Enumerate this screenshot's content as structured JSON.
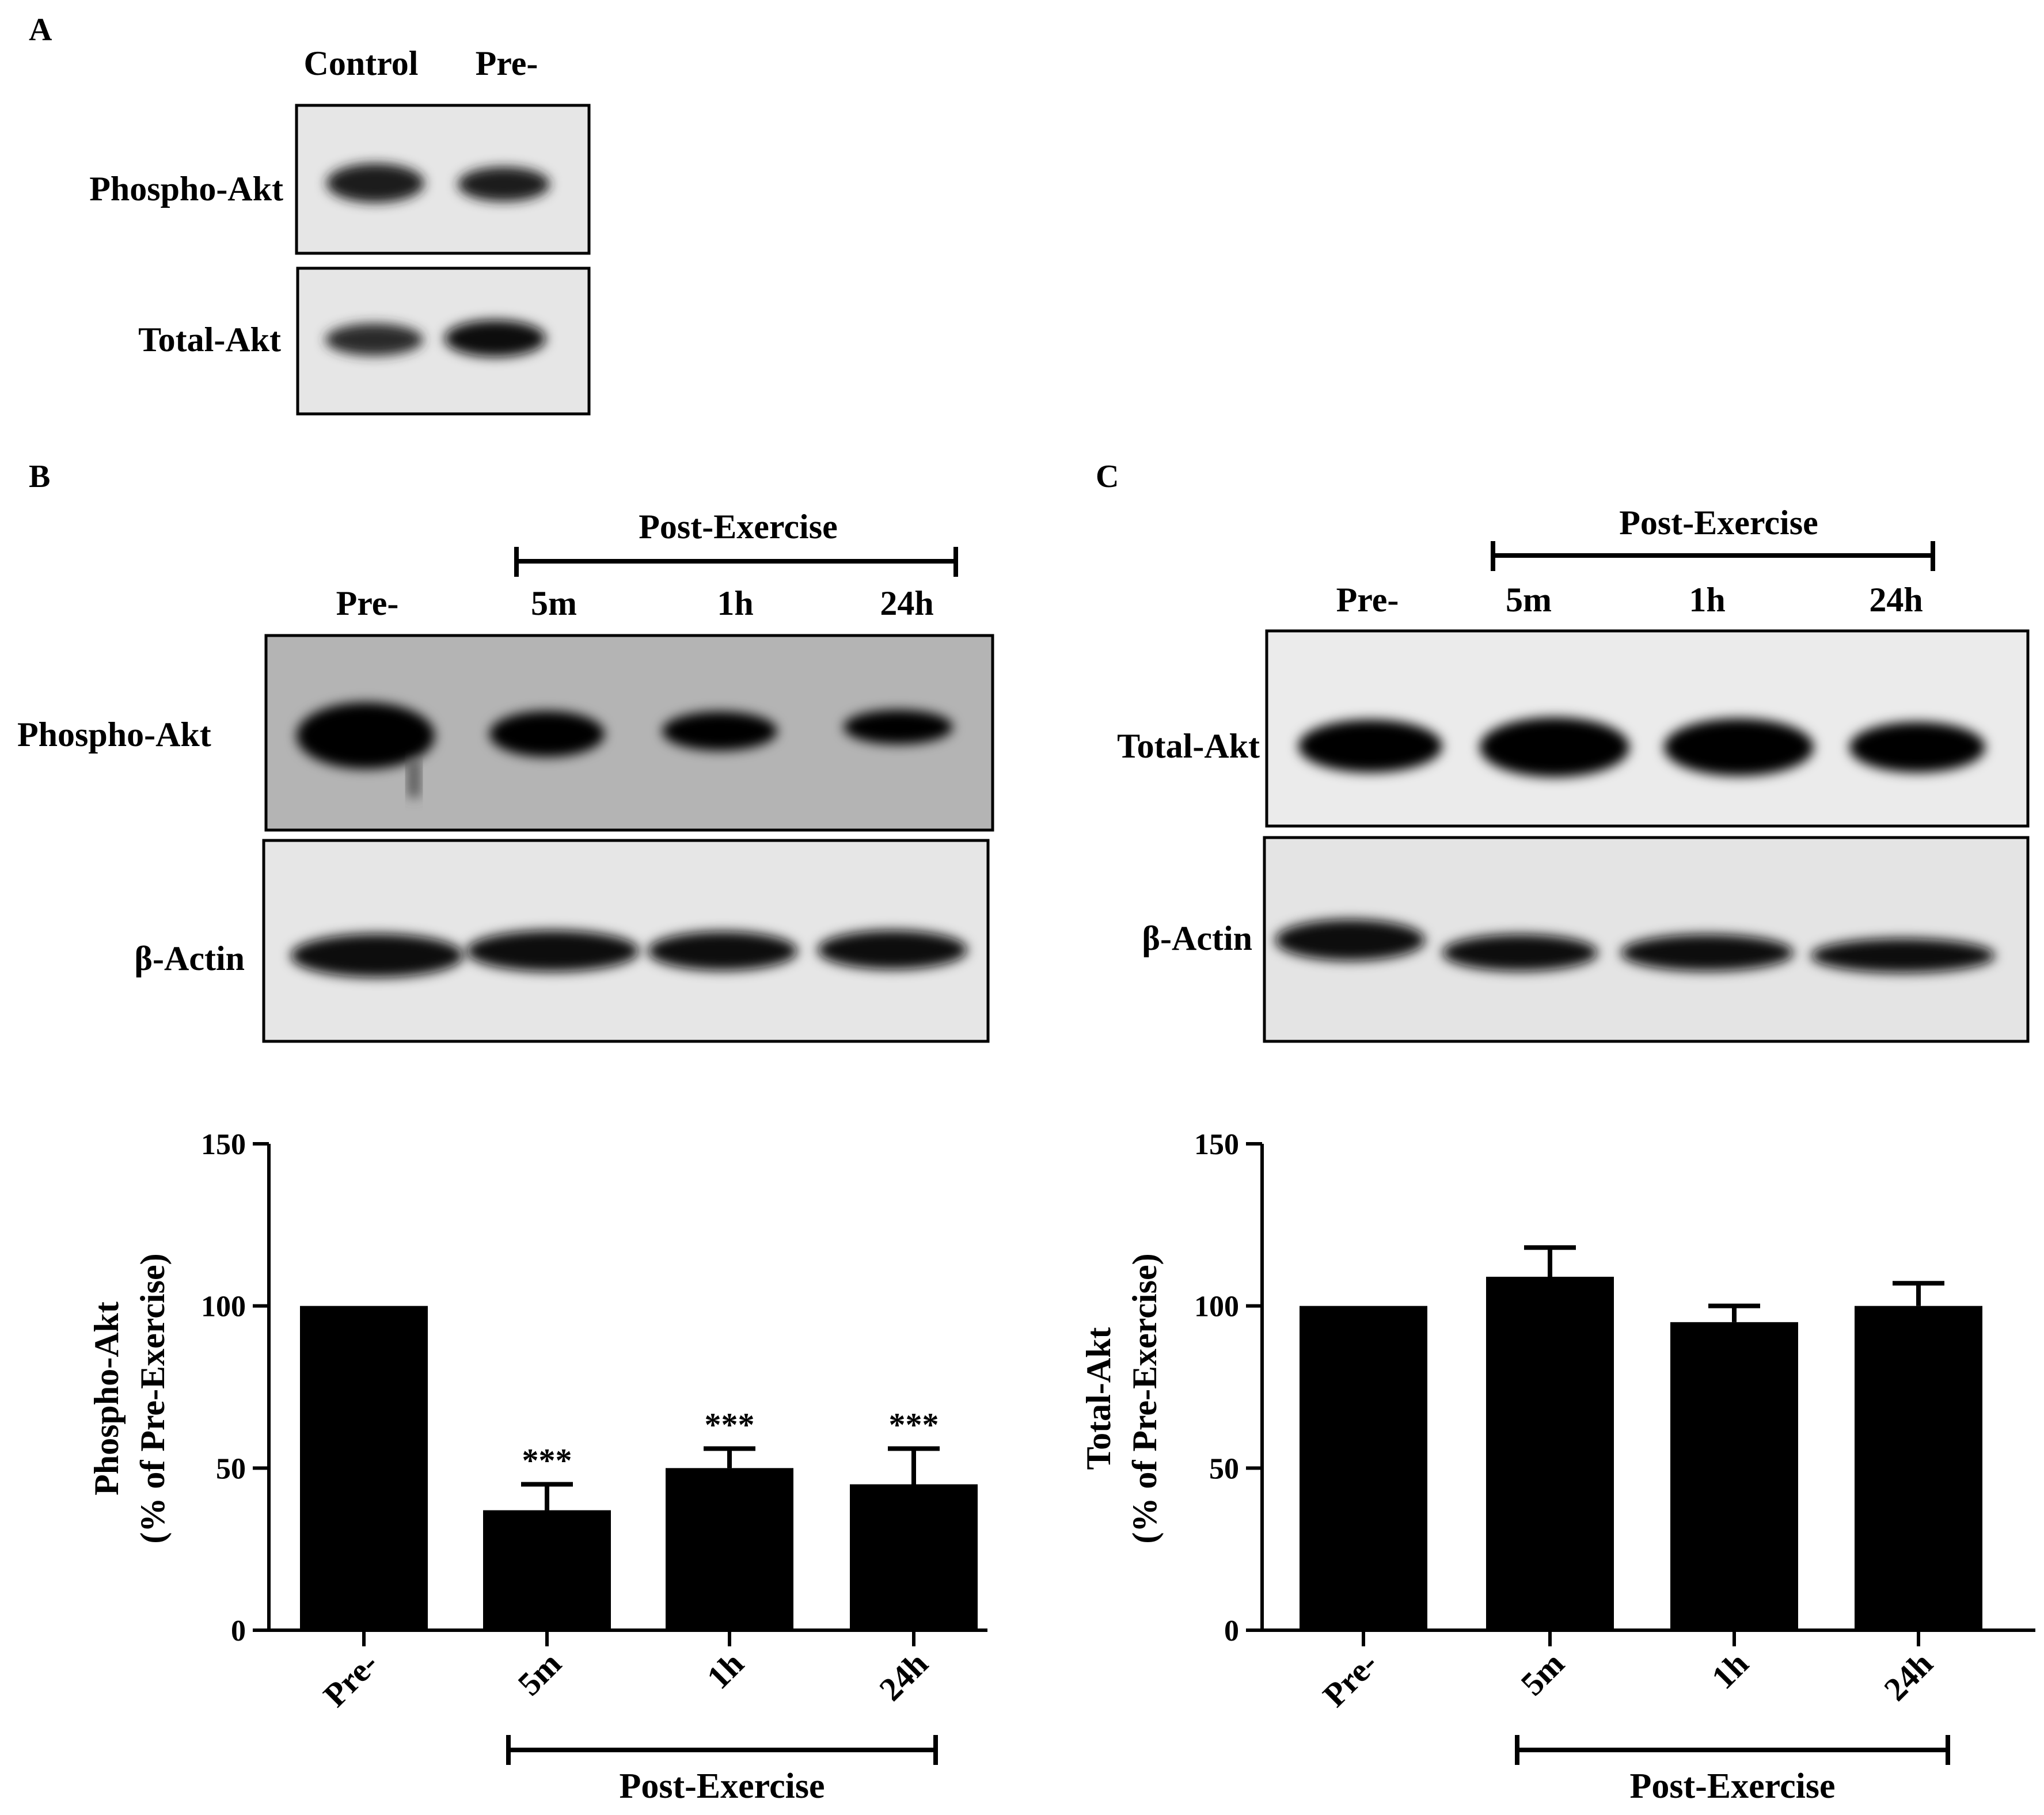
{
  "panel_labels": {
    "a": "A",
    "b": "B",
    "c": "C"
  },
  "blot_a": {
    "lanes": [
      "Control",
      "Pre-"
    ],
    "rows": [
      "Phospho-Akt",
      "Total-Akt"
    ]
  },
  "blot_b": {
    "group_label": "Post-Exercise",
    "lanes": [
      "Pre-",
      "5m",
      "1h",
      "24h"
    ],
    "rows": [
      "Phospho-Akt",
      "β-Actin"
    ]
  },
  "blot_c": {
    "group_label": "Post-Exercise",
    "lanes": [
      "Pre-",
      "5m",
      "1h",
      "24h"
    ],
    "rows": [
      "Total-Akt",
      "β-Actin"
    ]
  },
  "colors": {
    "bar": "#000000",
    "axis": "#000000",
    "blot_bg_b": "#b4b4b4",
    "blot_bg": "#e6e6e6",
    "band": "#0a0a0a"
  },
  "chart_data": [
    {
      "type": "bar",
      "panel": "B",
      "ylabel": "Phospho-Akt",
      "ylabel2": "(% of Pre-Exercise)",
      "categories": [
        "Pre-",
        "5m",
        "1h",
        "24h"
      ],
      "values": [
        100,
        37,
        50,
        45
      ],
      "errors": [
        0,
        8,
        6,
        11
      ],
      "annotations": [
        "",
        "***",
        "***",
        "***"
      ],
      "ylim": [
        0,
        150
      ],
      "yticks": [
        0,
        50,
        100,
        150
      ],
      "group_label": "Post-Exercise",
      "grid": false
    },
    {
      "type": "bar",
      "panel": "C",
      "ylabel": "Total-Akt",
      "ylabel2": "(% of Pre-Exercise)",
      "categories": [
        "Pre-",
        "5m",
        "1h",
        "24h"
      ],
      "values": [
        100,
        109,
        95,
        100
      ],
      "errors": [
        0,
        9,
        5,
        7
      ],
      "annotations": [
        "",
        "",
        "",
        ""
      ],
      "ylim": [
        0,
        150
      ],
      "yticks": [
        0,
        50,
        100,
        150
      ],
      "group_label": "Post-Exercise",
      "grid": false
    }
  ]
}
